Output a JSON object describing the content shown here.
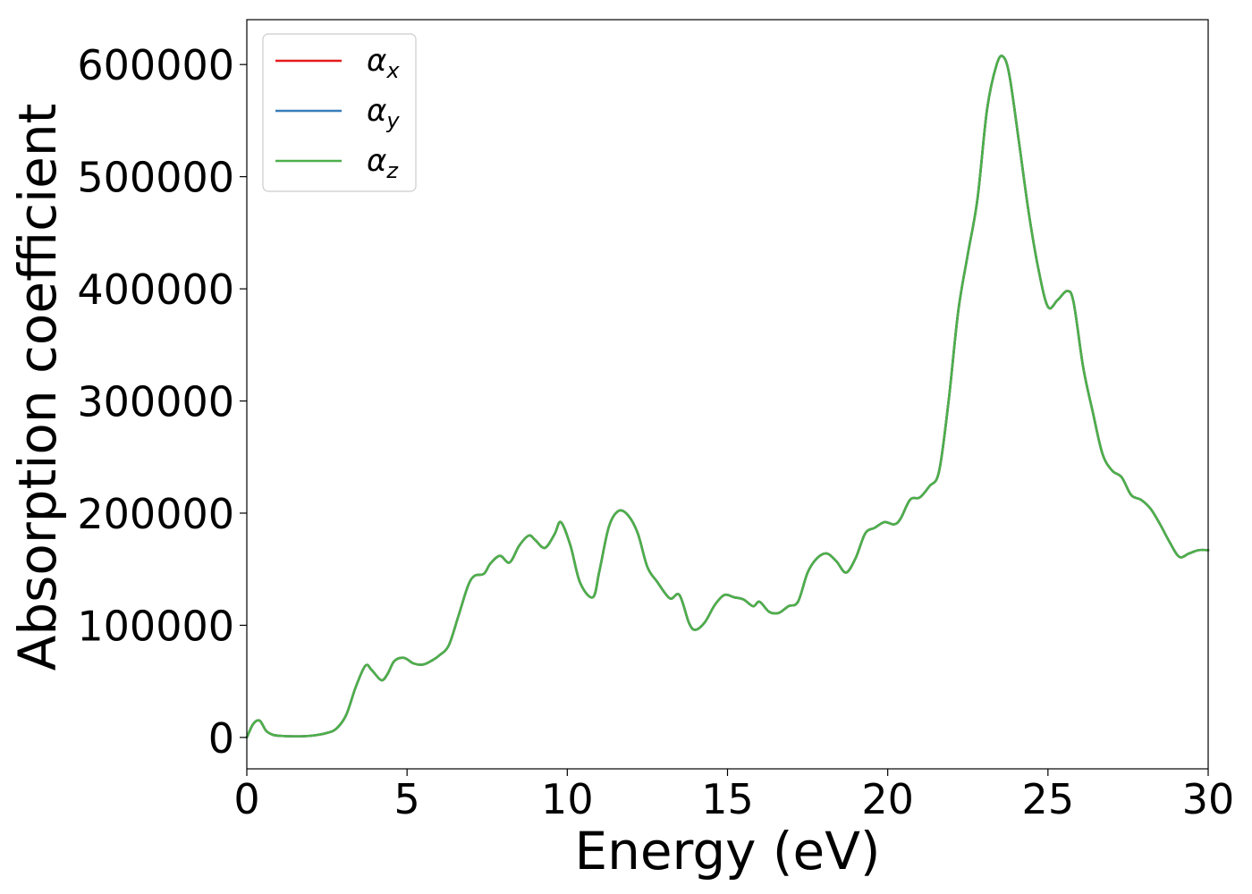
{
  "chart_data": {
    "type": "line",
    "xlabel": "Energy (eV)",
    "ylabel": "Absorption coefficient",
    "xlim": [
      0,
      30
    ],
    "ylim": [
      -28000,
      640000
    ],
    "xticks": [
      0,
      5,
      10,
      15,
      20,
      25,
      30
    ],
    "yticks": [
      0,
      100000,
      200000,
      300000,
      400000,
      500000,
      600000
    ],
    "xtick_labels": [
      "0",
      "5",
      "10",
      "15",
      "20",
      "25",
      "30"
    ],
    "ytick_labels": [
      "0",
      "100000",
      "200000",
      "300000",
      "400000",
      "500000",
      "600000"
    ],
    "grid": false,
    "legend": {
      "placement": "top-left",
      "entries": [
        {
          "symbol": "α",
          "subscript": "x",
          "color": "#e41a1c"
        },
        {
          "symbol": "α",
          "subscript": "y",
          "color": "#377eb8"
        },
        {
          "symbol": "α",
          "subscript": "z",
          "color": "#4daf4a"
        }
      ]
    },
    "x": [
      0,
      0.2,
      0.4,
      0.6,
      0.8,
      1.0,
      1.5,
      2.0,
      2.5,
      2.8,
      3.1,
      3.4,
      3.7,
      3.9,
      4.2,
      4.4,
      4.6,
      4.9,
      5.2,
      5.5,
      5.8,
      6.0,
      6.3,
      6.6,
      6.9,
      7.1,
      7.4,
      7.6,
      7.9,
      8.2,
      8.5,
      8.8,
      9.0,
      9.3,
      9.6,
      9.8,
      10.1,
      10.4,
      10.8,
      11.0,
      11.3,
      11.6,
      11.9,
      12.2,
      12.5,
      12.8,
      13.2,
      13.5,
      13.8,
      14.0,
      14.3,
      14.6,
      14.9,
      15.2,
      15.5,
      15.8,
      16.0,
      16.3,
      16.6,
      16.9,
      17.2,
      17.5,
      17.8,
      18.1,
      18.4,
      18.7,
      19.0,
      19.3,
      19.6,
      19.9,
      20.2,
      20.4,
      20.7,
      21.0,
      21.3,
      21.6,
      21.9,
      22.2,
      22.5,
      22.8,
      23.1,
      23.4,
      23.6,
      23.8,
      24.1,
      24.4,
      24.7,
      25.0,
      25.3,
      25.6,
      25.8,
      26.1,
      26.4,
      26.7,
      27.0,
      27.3,
      27.6,
      27.9,
      28.2,
      28.5,
      28.8,
      29.1,
      29.4,
      29.7,
      30.0
    ],
    "series": [
      {
        "label_symbol": "α",
        "label_subscript": "x",
        "color": "#e41a1c",
        "values": [
          0,
          12000,
          15000,
          6000,
          2500,
          1500,
          1000,
          1500,
          4000,
          8000,
          20000,
          45000,
          64000,
          60000,
          51000,
          57000,
          68000,
          71000,
          66000,
          65000,
          69000,
          73000,
          82000,
          108000,
          135000,
          144000,
          146000,
          155000,
          162000,
          156000,
          171000,
          180000,
          176000,
          169000,
          181000,
          192000,
          171000,
          138000,
          125000,
          148000,
          188000,
          202000,
          198000,
          182000,
          152000,
          139000,
          124000,
          127000,
          102000,
          96000,
          103000,
          118000,
          127000,
          125000,
          123000,
          117000,
          121000,
          112000,
          111000,
          117000,
          121000,
          147000,
          160000,
          164000,
          157000,
          147000,
          160000,
          182000,
          187000,
          192000,
          190000,
          195000,
          212000,
          214000,
          224000,
          237000,
          300000,
          380000,
          431000,
          480000,
          560000,
          600000,
          607000,
          590000,
          530000,
          468000,
          418000,
          384000,
          390000,
          398000,
          388000,
          330000,
          290000,
          253000,
          238000,
          232000,
          216000,
          212000,
          204000,
          190000,
          174000,
          161000,
          164000,
          167000,
          167000
        ]
      },
      {
        "label_symbol": "α",
        "label_subscript": "y",
        "color": "#377eb8",
        "values": [
          0,
          12000,
          15000,
          6000,
          2500,
          1500,
          1000,
          1500,
          4000,
          8000,
          20000,
          45000,
          64000,
          60000,
          51000,
          57000,
          68000,
          71000,
          66000,
          65000,
          69000,
          73000,
          82000,
          108000,
          135000,
          144000,
          146000,
          155000,
          162000,
          156000,
          171000,
          180000,
          176000,
          169000,
          181000,
          192000,
          171000,
          138000,
          125000,
          148000,
          188000,
          202000,
          198000,
          182000,
          152000,
          139000,
          124000,
          127000,
          102000,
          96000,
          103000,
          118000,
          127000,
          125000,
          123000,
          117000,
          121000,
          112000,
          111000,
          117000,
          121000,
          147000,
          160000,
          164000,
          157000,
          147000,
          160000,
          182000,
          187000,
          192000,
          190000,
          195000,
          212000,
          214000,
          224000,
          237000,
          300000,
          380000,
          431000,
          480000,
          560000,
          600000,
          607000,
          590000,
          530000,
          468000,
          418000,
          384000,
          390000,
          398000,
          388000,
          330000,
          290000,
          253000,
          238000,
          232000,
          216000,
          212000,
          204000,
          190000,
          174000,
          161000,
          164000,
          167000,
          167000
        ]
      },
      {
        "label_symbol": "α",
        "label_subscript": "z",
        "color": "#4daf4a",
        "values": [
          0,
          12000,
          15000,
          6000,
          2500,
          1500,
          1000,
          1500,
          4000,
          8000,
          20000,
          45000,
          64000,
          60000,
          51000,
          57000,
          68000,
          71000,
          66000,
          65000,
          69000,
          73000,
          82000,
          108000,
          135000,
          144000,
          146000,
          155000,
          162000,
          156000,
          171000,
          180000,
          176000,
          169000,
          181000,
          192000,
          171000,
          138000,
          125000,
          148000,
          188000,
          202000,
          198000,
          182000,
          152000,
          139000,
          124000,
          127000,
          102000,
          96000,
          103000,
          118000,
          127000,
          125000,
          123000,
          117000,
          121000,
          112000,
          111000,
          117000,
          121000,
          147000,
          160000,
          164000,
          157000,
          147000,
          160000,
          182000,
          187000,
          192000,
          190000,
          195000,
          212000,
          214000,
          224000,
          237000,
          300000,
          380000,
          431000,
          480000,
          560000,
          600000,
          607000,
          590000,
          530000,
          468000,
          418000,
          384000,
          390000,
          398000,
          388000,
          330000,
          290000,
          253000,
          238000,
          232000,
          216000,
          212000,
          204000,
          190000,
          174000,
          161000,
          164000,
          167000,
          167000
        ]
      }
    ]
  }
}
